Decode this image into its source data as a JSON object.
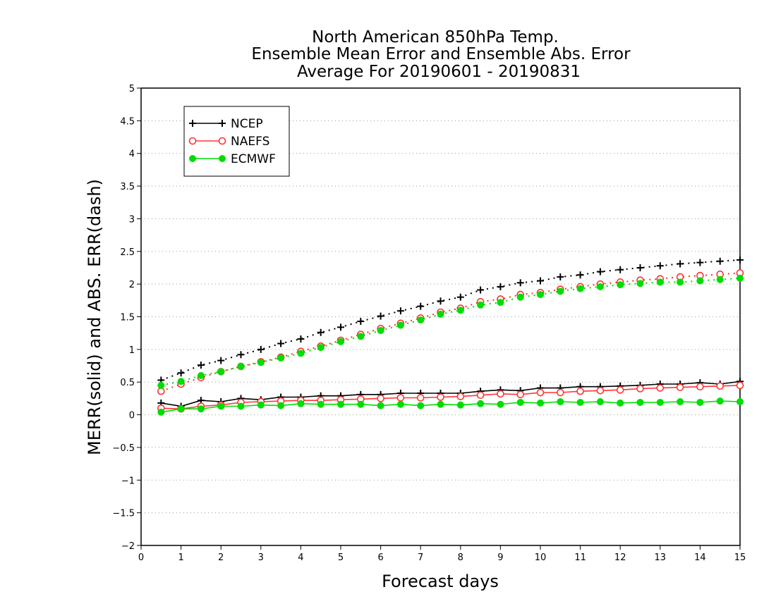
{
  "chart_data": {
    "type": "line",
    "title_lines": [
      "North American 850hPa Temp.",
      "Ensemble Mean Error and Ensemble Abs. Error",
      "Average For 20190601 - 20190831"
    ],
    "xlabel": "Forecast days",
    "ylabel": "MERR(solid) and ABS. ERR(dash)",
    "xlim": [
      0,
      15
    ],
    "ylim": [
      -2,
      5
    ],
    "xticks": [
      0,
      1,
      2,
      3,
      4,
      5,
      6,
      7,
      8,
      9,
      10,
      11,
      12,
      13,
      14,
      15
    ],
    "yticks": [
      -2,
      -1.5,
      -1,
      -0.5,
      0,
      0.5,
      1,
      1.5,
      2,
      2.5,
      3,
      3.5,
      4,
      4.5,
      5
    ],
    "grid": "horizontal dotted",
    "legend_position": "top-left",
    "x": [
      0.5,
      1,
      1.5,
      2,
      2.5,
      3,
      3.5,
      4,
      4.5,
      5,
      5.5,
      6,
      6.5,
      7,
      7.5,
      8,
      8.5,
      9,
      9.5,
      10,
      10.5,
      11,
      11.5,
      12,
      12.5,
      13,
      13.5,
      14,
      14.5,
      15
    ],
    "series": [
      {
        "name": "NCEP",
        "color": "#000000",
        "marker": "plus",
        "merr": [
          0.18,
          0.13,
          0.22,
          0.2,
          0.25,
          0.23,
          0.27,
          0.27,
          0.29,
          0.29,
          0.31,
          0.31,
          0.33,
          0.33,
          0.33,
          0.33,
          0.36,
          0.38,
          0.37,
          0.41,
          0.41,
          0.43,
          0.43,
          0.44,
          0.45,
          0.47,
          0.47,
          0.49,
          0.47,
          0.51
        ],
        "abs_err": [
          0.53,
          0.64,
          0.76,
          0.83,
          0.92,
          1.0,
          1.09,
          1.16,
          1.26,
          1.34,
          1.43,
          1.51,
          1.59,
          1.66,
          1.74,
          1.8,
          1.91,
          1.96,
          2.02,
          2.05,
          2.11,
          2.14,
          2.19,
          2.22,
          2.25,
          2.28,
          2.31,
          2.33,
          2.35,
          2.37
        ]
      },
      {
        "name": "NAEFS",
        "color": "#ff3333",
        "marker": "open-circle",
        "merr": [
          0.1,
          0.09,
          0.13,
          0.15,
          0.19,
          0.2,
          0.21,
          0.22,
          0.22,
          0.23,
          0.24,
          0.25,
          0.26,
          0.26,
          0.27,
          0.28,
          0.3,
          0.32,
          0.31,
          0.34,
          0.34,
          0.36,
          0.37,
          0.38,
          0.4,
          0.41,
          0.42,
          0.43,
          0.44,
          0.45
        ],
        "abs_err": [
          0.36,
          0.47,
          0.57,
          0.66,
          0.74,
          0.81,
          0.88,
          0.97,
          1.05,
          1.14,
          1.23,
          1.32,
          1.4,
          1.48,
          1.57,
          1.63,
          1.73,
          1.77,
          1.84,
          1.87,
          1.92,
          1.96,
          2.0,
          2.03,
          2.06,
          2.08,
          2.11,
          2.13,
          2.15,
          2.17
        ]
      },
      {
        "name": "ECMWF",
        "color": "#00dd00",
        "marker": "filled-circle",
        "merr": [
          0.04,
          0.09,
          0.09,
          0.13,
          0.13,
          0.15,
          0.14,
          0.17,
          0.16,
          0.16,
          0.16,
          0.14,
          0.16,
          0.14,
          0.16,
          0.15,
          0.17,
          0.16,
          0.19,
          0.18,
          0.2,
          0.19,
          0.2,
          0.18,
          0.19,
          0.19,
          0.2,
          0.19,
          0.21,
          0.2
        ],
        "abs_err": [
          0.45,
          0.51,
          0.6,
          0.66,
          0.74,
          0.8,
          0.87,
          0.94,
          1.03,
          1.12,
          1.2,
          1.29,
          1.37,
          1.45,
          1.54,
          1.6,
          1.68,
          1.72,
          1.8,
          1.84,
          1.89,
          1.93,
          1.96,
          1.99,
          2.01,
          2.03,
          2.03,
          2.05,
          2.07,
          2.09
        ]
      }
    ]
  }
}
